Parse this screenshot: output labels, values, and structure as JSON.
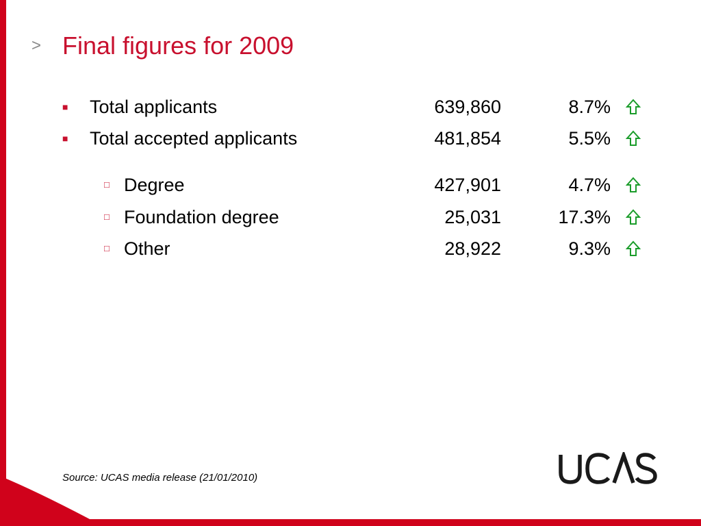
{
  "slide": {
    "title_marker": ">",
    "title": "Final figures for 2009",
    "rows": [
      {
        "label": "Total applicants",
        "count": "639,860",
        "change": "8.7%",
        "trend_icon": "up-arrow-icon",
        "level": 1
      },
      {
        "label": "Total accepted applicants",
        "count": "481,854",
        "change": "5.5%",
        "trend_icon": "up-arrow-icon",
        "level": 1
      },
      {
        "label": "Degree",
        "count": "427,901",
        "change": "4.7%",
        "trend_icon": "up-arrow-icon",
        "level": 2
      },
      {
        "label": "Foundation degree",
        "count": "25,031",
        "change": "17.3%",
        "trend_icon": "up-arrow-icon",
        "level": 2
      },
      {
        "label": "Other",
        "count": "28,922",
        "change": "9.3%",
        "trend_icon": "up-arrow-icon",
        "level": 2
      }
    ],
    "source": "Source: UCAS media release (21/01/2010)",
    "logo_text": "UCAS"
  },
  "colors": {
    "accent": "#c8102e",
    "arrow": "#1a9c2a",
    "logo": "#1a1a1a"
  }
}
